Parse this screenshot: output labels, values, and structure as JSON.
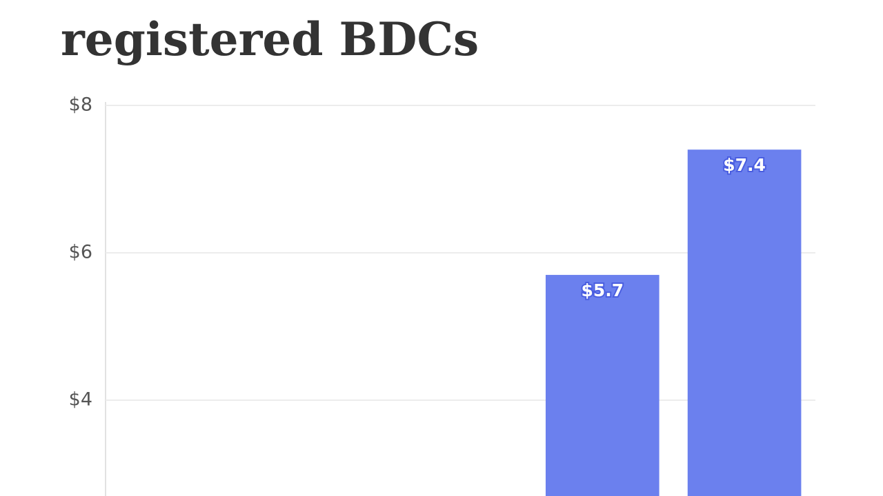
{
  "chart_data": {
    "type": "bar",
    "title": "registered BDCs",
    "categories": [
      null,
      null,
      null,
      null,
      null
    ],
    "values": [
      null,
      null,
      null,
      5.7,
      7.4
    ],
    "value_labels": [
      null,
      null,
      null,
      "$5.7",
      "$7.4"
    ],
    "color": "#6b80ee",
    "ylim": [
      2.7,
      8
    ],
    "yticks": [
      {
        "value": 4,
        "label": "$4"
      },
      {
        "value": 6,
        "label": "$6"
      },
      {
        "value": 8,
        "label": "$8"
      }
    ],
    "grid": true
  }
}
